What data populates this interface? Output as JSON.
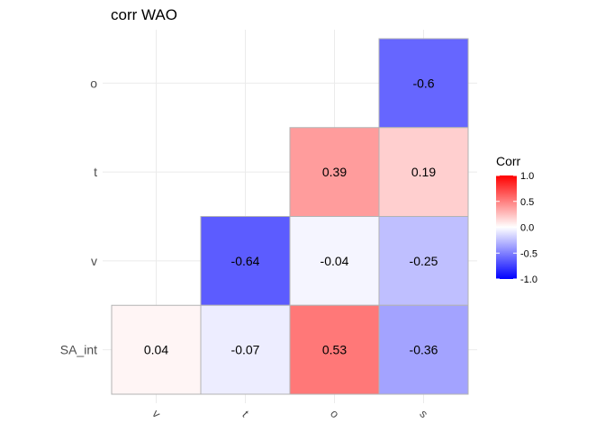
{
  "chart_data": {
    "type": "heatmap",
    "title": "corr WAO",
    "xlabel": "",
    "ylabel": "",
    "x_categories": [
      "v",
      "t",
      "o",
      "s"
    ],
    "y_categories": [
      "SA_int",
      "v",
      "t",
      "o"
    ],
    "cells": [
      {
        "x": "s",
        "y": "o",
        "value": -0.6,
        "label": "-0.6"
      },
      {
        "x": "o",
        "y": "t",
        "value": 0.39,
        "label": "0.39"
      },
      {
        "x": "s",
        "y": "t",
        "value": 0.19,
        "label": "0.19"
      },
      {
        "x": "t",
        "y": "v",
        "value": -0.64,
        "label": "-0.64"
      },
      {
        "x": "o",
        "y": "v",
        "value": -0.04,
        "label": "-0.04"
      },
      {
        "x": "s",
        "y": "v",
        "value": -0.25,
        "label": "-0.25"
      },
      {
        "x": "v",
        "y": "SA_int",
        "value": 0.04,
        "label": "0.04"
      },
      {
        "x": "t",
        "y": "SA_int",
        "value": -0.07,
        "label": "-0.07"
      },
      {
        "x": "o",
        "y": "SA_int",
        "value": 0.53,
        "label": "0.53"
      },
      {
        "x": "s",
        "y": "SA_int",
        "value": -0.36,
        "label": "-0.36"
      }
    ],
    "legend": {
      "title": "Corr",
      "ticks": [
        "1.0",
        "0.5",
        "0.0",
        "-0.5",
        "-1.0"
      ],
      "tick_values": [
        1.0,
        0.5,
        0.0,
        -0.5,
        -1.0
      ],
      "limits": [
        -1.0,
        1.0
      ],
      "colors": {
        "low": "#0000ff",
        "mid": "#ffffff",
        "high": "#ff0000"
      },
      "placement": "right"
    },
    "grid": true
  }
}
